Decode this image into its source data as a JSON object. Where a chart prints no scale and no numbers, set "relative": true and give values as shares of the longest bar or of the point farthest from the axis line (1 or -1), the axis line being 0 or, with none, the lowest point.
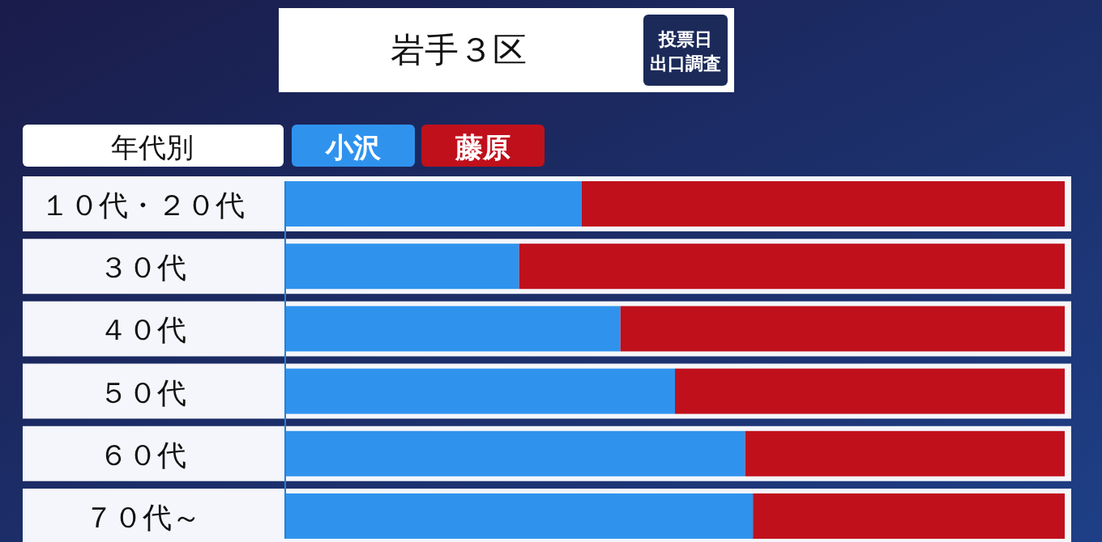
{
  "chart_data": {
    "type": "bar",
    "orientation": "horizontal",
    "stacked": true,
    "relative": true,
    "title": "岩手３区",
    "annotations": [
      "投票日",
      "出口調査"
    ],
    "ylabel": "年代別",
    "legend": "top",
    "categories": [
      "１０代・２０代",
      "３０代",
      "４０代",
      "５０代",
      "６０代",
      "７０代～"
    ],
    "series": [
      {
        "name": "小沢",
        "color": "#2f93ee",
        "values": [
          0.38,
          0.3,
          0.43,
          0.5,
          0.59,
          0.6
        ]
      },
      {
        "name": "藤原",
        "color": "#c0101c",
        "values": [
          0.62,
          0.7,
          0.57,
          0.5,
          0.41,
          0.4
        ]
      }
    ]
  }
}
